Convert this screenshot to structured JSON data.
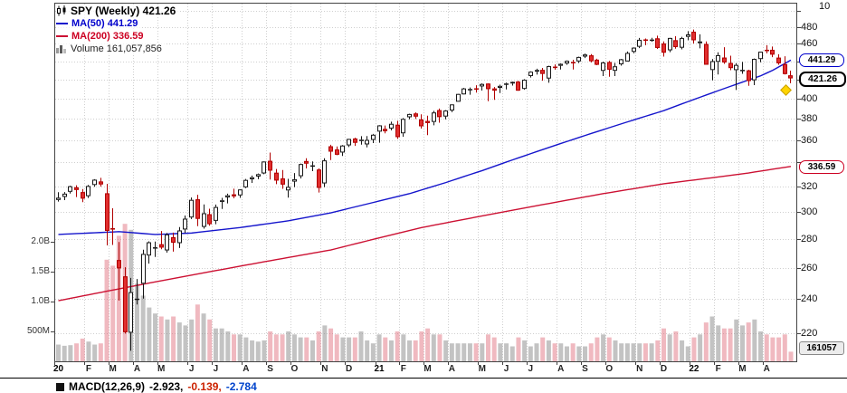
{
  "legend": {
    "symbol_label": "SPY (Weekly) 421.26",
    "ma50_label": "MA(50) 441.29",
    "ma200_label": "MA(200) 336.59",
    "volume_label": "Volume 161,057,856"
  },
  "axis": {
    "partial_top_label": "10",
    "right_ticks": [
      480,
      460,
      400,
      380,
      360,
      320,
      300,
      280,
      260,
      240,
      220
    ],
    "volume_ticks": [
      [
        "2.0B",
        2000
      ],
      [
        "1.5B",
        1500
      ],
      [
        "1.0B",
        1000
      ],
      [
        "500M",
        500
      ]
    ]
  },
  "callouts": {
    "ma50": {
      "label": "441.29",
      "price": 441.29
    },
    "last": {
      "label": "421.26",
      "price": 421.26
    },
    "ma200": {
      "label": "336.59",
      "price": 336.59
    },
    "volume": {
      "label": "161057"
    }
  },
  "macd": {
    "name": "MACD(12,26,9)",
    "value1": "-2.923,",
    "value2": "-0.139,",
    "value3": "-2.784"
  },
  "colors": {
    "up_stroke": "#151515",
    "up_fill": "#ffffff",
    "down_stroke": "#b00000",
    "down_fill": "#e12e2e",
    "ma50": "#1515cc",
    "ma200": "#cc1133",
    "vol_up": "rgba(135,135,135,0.5)",
    "vol_down": "rgba(222,100,115,0.45)",
    "grid": "#cfcfcf",
    "frame": "#444444"
  },
  "chart_data": {
    "type": "candlestick",
    "symbol": "SPY",
    "timeframe": "Weekly",
    "scale": "log",
    "last_price": 421.26,
    "ma50_last": 441.29,
    "ma200_last": 336.59,
    "last_volume": "161,057,856",
    "price_axis_range": [
      220,
      480
    ],
    "x_labels": [
      [
        "20",
        0,
        1
      ],
      [
        "F",
        5,
        0
      ],
      [
        "M",
        9,
        0
      ],
      [
        "A",
        13,
        0
      ],
      [
        "M",
        17,
        0
      ],
      [
        "J",
        22,
        0
      ],
      [
        "J",
        26,
        0
      ],
      [
        "A",
        31,
        0
      ],
      [
        "S",
        35,
        0
      ],
      [
        "O",
        39,
        0
      ],
      [
        "N",
        44,
        0
      ],
      [
        "D",
        48,
        0
      ],
      [
        "21",
        53,
        1
      ],
      [
        "F",
        57,
        0
      ],
      [
        "M",
        61,
        0
      ],
      [
        "A",
        65,
        0
      ],
      [
        "M",
        70,
        0
      ],
      [
        "J",
        74,
        0
      ],
      [
        "J",
        78,
        0
      ],
      [
        "A",
        83,
        0
      ],
      [
        "S",
        87,
        0
      ],
      [
        "O",
        91,
        0
      ],
      [
        "N",
        96,
        0
      ],
      [
        "D",
        100,
        0
      ],
      [
        "22",
        105,
        1
      ],
      [
        "F",
        109,
        0
      ],
      [
        "M",
        113,
        0
      ],
      [
        "A",
        117,
        0
      ]
    ],
    "weeks": [
      [
        309.0,
        315.2,
        307.7,
        310.8,
        280
      ],
      [
        311.4,
        315.3,
        308.9,
        314.0,
        260
      ],
      [
        315.5,
        320.5,
        314.1,
        320.0,
        270
      ],
      [
        319.1,
        320.8,
        311.3,
        317.0,
        300
      ],
      [
        315.2,
        317.7,
        307.3,
        310.1,
        380
      ],
      [
        312.0,
        321.0,
        310.6,
        320.2,
        330
      ],
      [
        321.0,
        325.8,
        319.6,
        325.4,
        280
      ],
      [
        323.9,
        326.9,
        319.7,
        321.5,
        300
      ],
      [
        314.3,
        322.0,
        275.2,
        285.6,
        1700
      ],
      [
        287.5,
        302.5,
        275.5,
        286.8,
        1600
      ],
      [
        265.1,
        277.6,
        239.1,
        259.6,
        2100
      ],
      [
        254.3,
        260.3,
        219.8,
        220.6,
        2300
      ],
      [
        220.3,
        253.3,
        210.4,
        244.3,
        2200
      ],
      [
        240.0,
        252.6,
        236.7,
        240.3,
        1300
      ],
      [
        249.6,
        272.2,
        240.3,
        269.3,
        1100
      ],
      [
        268.2,
        278.1,
        262.7,
        277.4,
        900
      ],
      [
        273.6,
        277.9,
        267.2,
        273.9,
        800
      ],
      [
        276.0,
        285.5,
        272.5,
        273.7,
        750
      ],
      [
        271.7,
        284.1,
        270.2,
        283.0,
        700
      ],
      [
        281.0,
        284.3,
        270.9,
        277.1,
        750
      ],
      [
        276.8,
        288.4,
        273.4,
        285.9,
        650
      ],
      [
        286.6,
        297.0,
        284.1,
        294.6,
        600
      ],
      [
        295.5,
        310.9,
        294.3,
        309.1,
        700
      ],
      [
        309.5,
        313.1,
        289.0,
        294.5,
        950
      ],
      [
        288.5,
        305.5,
        287.2,
        298.7,
        800
      ],
      [
        298.0,
        302.2,
        289.4,
        290.5,
        700
      ],
      [
        293.0,
        305.4,
        290.5,
        303.5,
        550
      ],
      [
        307.5,
        310.7,
        302.0,
        308.7,
        550
      ],
      [
        311.0,
        314.0,
        306.3,
        312.7,
        500
      ],
      [
        313.4,
        318.0,
        310.3,
        311.9,
        450
      ],
      [
        312.6,
        317.5,
        310.7,
        317.4,
        450
      ],
      [
        319.1,
        326.0,
        318.5,
        325.2,
        400
      ],
      [
        325.7,
        328.8,
        322.7,
        327.4,
        350
      ],
      [
        328.0,
        330.5,
        325.8,
        330.0,
        330
      ],
      [
        330.6,
        340.9,
        330.0,
        340.8,
        350
      ],
      [
        341.4,
        348.7,
        325.5,
        333.0,
        500
      ],
      [
        331.2,
        334.4,
        321.7,
        324.7,
        450
      ],
      [
        326.4,
        333.5,
        317.9,
        321.4,
        450
      ],
      [
        316.6,
        326.1,
        310.8,
        319.5,
        500
      ],
      [
        323.8,
        330.9,
        319.3,
        325.8,
        450
      ],
      [
        328.3,
        339.0,
        326.4,
        338.6,
        400
      ],
      [
        341.2,
        343.7,
        334.9,
        339.0,
        400
      ],
      [
        337.1,
        340.9,
        332.5,
        337.5,
        350
      ],
      [
        333.9,
        334.9,
        314.9,
        318.7,
        500
      ],
      [
        322.3,
        343.7,
        319.3,
        341.8,
        600
      ],
      [
        354.3,
        355.7,
        342.1,
        349.5,
        550
      ],
      [
        351.4,
        354.1,
        346.4,
        346.8,
        450
      ],
      [
        348.7,
        355.5,
        345.7,
        355.0,
        400
      ],
      [
        355.1,
        361.0,
        353.6,
        361.0,
        400
      ],
      [
        361.4,
        362.2,
        354.6,
        357.5,
        400
      ],
      [
        359.1,
        363.6,
        355.8,
        360.3,
        500
      ],
      [
        356.0,
        363.7,
        353.3,
        360.1,
        350
      ],
      [
        360.1,
        365.7,
        357.2,
        364.9,
        300
      ],
      [
        367.8,
        373.9,
        357.5,
        373.7,
        450
      ],
      [
        370.3,
        373.5,
        366.2,
        368.2,
        400
      ],
      [
        370.7,
        377.2,
        368.9,
        375.2,
        350
      ],
      [
        374.3,
        378.1,
        361.0,
        362.7,
        500
      ],
      [
        366.2,
        380.7,
        363.0,
        379.9,
        450
      ],
      [
        381.5,
        385.0,
        379.5,
        384.7,
        350
      ],
      [
        385.2,
        386.3,
        379.9,
        382.2,
        350
      ],
      [
        379.4,
        384.4,
        370.6,
        372.8,
        500
      ],
      [
        377.9,
        383.1,
        364.5,
        375.9,
        550
      ],
      [
        377.0,
        387.8,
        373.8,
        386.2,
        450
      ],
      [
        388.5,
        390.1,
        376.2,
        381.7,
        450
      ],
      [
        382.2,
        388.5,
        379.5,
        388.1,
        350
      ],
      [
        388.1,
        394.3,
        386.5,
        394.2,
        300
      ],
      [
        396.9,
        405.1,
        396.9,
        404.9,
        300
      ],
      [
        404.4,
        411.2,
        404.3,
        410.6,
        300
      ],
      [
        409.9,
        411.6,
        404.0,
        410.0,
        300
      ],
      [
        410.7,
        414.0,
        406.3,
        410.6,
        300
      ],
      [
        412.7,
        416.0,
        408.4,
        415.3,
        300
      ],
      [
        415.7,
        415.9,
        397.5,
        409.9,
        450
      ],
      [
        410.5,
        412.1,
        398.8,
        408.3,
        400
      ],
      [
        411.2,
        414.5,
        405.8,
        413.3,
        300
      ],
      [
        415.8,
        416.7,
        409.6,
        415.8,
        300
      ],
      [
        415.8,
        417.8,
        413.6,
        417.5,
        250
      ],
      [
        417.8,
        418.7,
        408.1,
        408.3,
        400
      ],
      [
        410.1,
        420.3,
        409.2,
        419.8,
        350
      ],
      [
        423.8,
        428.9,
        422.1,
        428.5,
        250
      ],
      [
        428.6,
        431.8,
        425.3,
        430.3,
        300
      ],
      [
        430.4,
        432.6,
        418.8,
        426.1,
        400
      ],
      [
        421.1,
        435.0,
        416.6,
        434.6,
        350
      ],
      [
        434.0,
        436.5,
        430.7,
        433.2,
        300
      ],
      [
        435.0,
        437.6,
        430.9,
        437.2,
        300
      ],
      [
        437.5,
        441.0,
        436.0,
        440.5,
        250
      ],
      [
        439.2,
        441.7,
        430.9,
        438.1,
        300
      ],
      [
        439.9,
        445.3,
        438.1,
        444.9,
        250
      ],
      [
        445.3,
        448.7,
        443.6,
        447.7,
        250
      ],
      [
        446.7,
        448.2,
        438.8,
        440.1,
        300
      ],
      [
        441.8,
        442.9,
        435.7,
        436.1,
        400
      ],
      [
        429.4,
        439.6,
        423.8,
        438.6,
        450
      ],
      [
        439.2,
        440.5,
        423.0,
        430.7,
        400
      ],
      [
        429.5,
        438.2,
        423.8,
        434.4,
        350
      ],
      [
        436.6,
        442.7,
        435.1,
        442.3,
        300
      ],
      [
        439.8,
        451.1,
        439.8,
        449.5,
        300
      ],
      [
        450.7,
        455.9,
        449.0,
        455.6,
        300
      ],
      [
        456.6,
        467.0,
        455.0,
        464.8,
        300
      ],
      [
        465.2,
        466.4,
        458.3,
        463.6,
        300
      ],
      [
        464.9,
        467.1,
        462.5,
        465.1,
        300
      ],
      [
        466.5,
        469.7,
        454.1,
        455.3,
        350
      ],
      [
        460.4,
        462.9,
        445.3,
        449.8,
        550
      ],
      [
        452.5,
        467.1,
        450.3,
        467.0,
        450
      ],
      [
        464.3,
        469.1,
        454.4,
        456.2,
        500
      ],
      [
        455.5,
        468.4,
        453.6,
        466.8,
        350
      ],
      [
        468.3,
        475.2,
        464.2,
        471.2,
        250
      ],
      [
        474.4,
        477.1,
        460.5,
        464.2,
        400
      ],
      [
        460.8,
        471.3,
        454.8,
        462.8,
        450
      ],
      [
        459.8,
        462.8,
        436.1,
        436.2,
        650
      ],
      [
        430.3,
        442.5,
        419.1,
        440.2,
        750
      ],
      [
        439.4,
        450.2,
        425.5,
        446.9,
        600
      ],
      [
        444.2,
        456.1,
        437.1,
        438.7,
        550
      ],
      [
        438.1,
        446.3,
        430.1,
        432.5,
        550
      ],
      [
        430.2,
        437.9,
        409.0,
        436.0,
        700
      ],
      [
        430.3,
        439.3,
        426.2,
        430.5,
        600
      ],
      [
        429.9,
        430.6,
        413.4,
        418.4,
        650
      ],
      [
        419.2,
        443.1,
        414.1,
        442.7,
        700
      ],
      [
        442.5,
        451.0,
        438.9,
        450.9,
        500
      ],
      [
        453.1,
        458.5,
        449.1,
        452.9,
        450
      ],
      [
        453.1,
        456.9,
        444.7,
        447.6,
        400
      ],
      [
        444.1,
        448.0,
        436.1,
        437.8,
        400
      ],
      [
        436.8,
        445.7,
        425.4,
        426.0,
        450
      ],
      [
        424.5,
        429.6,
        416.1,
        421.26,
        161
      ]
    ],
    "ma50_points": [
      [
        0,
        283
      ],
      [
        10,
        285
      ],
      [
        16,
        283
      ],
      [
        22,
        284
      ],
      [
        30,
        288
      ],
      [
        38,
        293
      ],
      [
        45,
        299
      ],
      [
        52,
        307
      ],
      [
        58,
        314
      ],
      [
        64,
        323
      ],
      [
        70,
        333
      ],
      [
        76,
        344
      ],
      [
        82,
        355
      ],
      [
        88,
        366
      ],
      [
        94,
        377
      ],
      [
        100,
        388
      ],
      [
        104,
        397
      ],
      [
        108,
        406
      ],
      [
        112,
        415
      ],
      [
        116,
        424
      ],
      [
        118,
        430
      ],
      [
        121,
        441.29
      ]
    ],
    "ma200_points": [
      [
        0,
        239
      ],
      [
        15,
        250
      ],
      [
        30,
        261
      ],
      [
        45,
        272
      ],
      [
        60,
        288
      ],
      [
        75,
        301
      ],
      [
        90,
        314
      ],
      [
        100,
        322
      ],
      [
        108,
        327
      ],
      [
        114,
        331
      ],
      [
        121,
        336.59
      ]
    ]
  }
}
